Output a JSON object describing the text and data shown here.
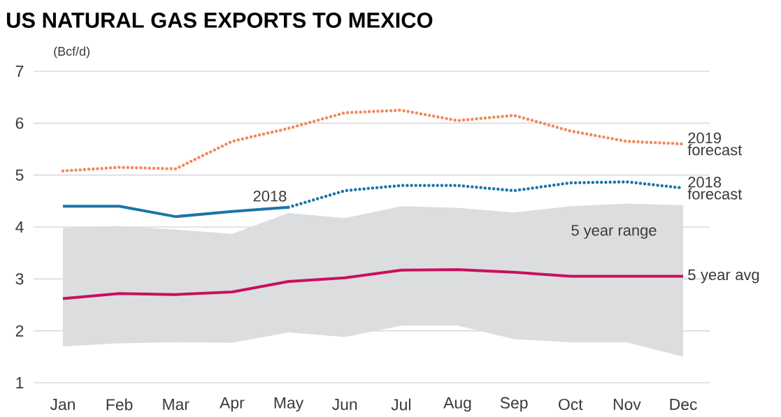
{
  "chart_data": {
    "type": "line",
    "title": "US NATURAL GAS EXPORTS TO MEXICO",
    "ylabel": "(Bcf/d)",
    "categories": [
      "Jan",
      "Feb",
      "Mar",
      "Apr",
      "May",
      "Jun",
      "Jul",
      "Aug",
      "Sep",
      "Oct",
      "Nov",
      "Dec"
    ],
    "ylim": [
      1,
      7
    ],
    "yticks": [
      1,
      2,
      3,
      4,
      5,
      6,
      7
    ],
    "grid": "y",
    "legend": false,
    "marker": "none",
    "annotations": [
      "5 year range"
    ],
    "series": [
      {
        "name": "5 year avg",
        "color": "#c8105f",
        "line_style": "solid",
        "values": [
          2.62,
          2.72,
          2.7,
          2.75,
          2.95,
          3.02,
          3.17,
          3.18,
          3.13,
          3.05,
          3.05,
          3.05
        ],
        "lower": [
          1.7,
          1.76,
          1.78,
          1.77,
          1.97,
          1.88,
          2.1,
          2.1,
          1.84,
          1.78,
          1.78,
          1.5
        ],
        "upper": [
          3.98,
          4.02,
          3.95,
          3.87,
          4.27,
          4.17,
          4.4,
          4.37,
          4.28,
          4.4,
          4.45,
          4.42
        ]
      },
      {
        "name": "2018",
        "color": "#1a75a8",
        "line_style": "solid",
        "values": [
          4.4,
          4.4,
          4.2,
          4.3,
          4.38,
          null,
          null,
          null,
          null,
          null,
          null,
          null
        ]
      },
      {
        "name": "2018 forecast",
        "color": "#1a75a8",
        "line_style": "dotted",
        "values": [
          null,
          null,
          null,
          null,
          4.38,
          4.7,
          4.8,
          4.8,
          4.7,
          4.85,
          4.87,
          4.75
        ]
      },
      {
        "name": "2019 forecast",
        "color": "#f08a5a",
        "line_style": "dotted",
        "values": [
          5.08,
          5.15,
          5.12,
          5.65,
          5.9,
          6.2,
          6.25,
          6.05,
          6.15,
          5.85,
          5.65,
          5.6
        ]
      }
    ]
  }
}
